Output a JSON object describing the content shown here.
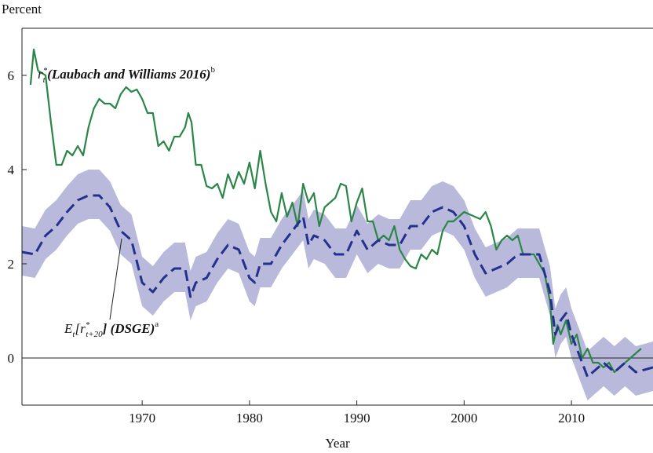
{
  "chart_data": {
    "type": "line",
    "y_axis_label": "Percent",
    "x_axis_label": "Year",
    "xlim": [
      1958.8,
      2017.6
    ],
    "xticks": [
      1970,
      1980,
      1990,
      2000,
      2010
    ],
    "ylim": [
      -1,
      7
    ],
    "yticks": [
      0,
      2,
      4,
      6
    ],
    "zero_line": true,
    "annotations": [
      {
        "parts": [
          "r",
          "t",
          "*",
          "(Laubach and Williams 2016)",
          "b"
        ]
      },
      {
        "parts": [
          "E",
          "t",
          "[r",
          "*",
          "t+20",
          "] (DSGE)",
          "a"
        ]
      }
    ],
    "band": {
      "color": "#b9b9dc",
      "x": [
        1958.8,
        1960,
        1961,
        1962,
        1963,
        1964,
        1965,
        1966,
        1967,
        1968,
        1969,
        1970,
        1971,
        1972,
        1973,
        1974,
        1974.5,
        1975,
        1976,
        1977,
        1978,
        1979,
        1980,
        1980.5,
        1981,
        1982,
        1983,
        1984,
        1985,
        1985.5,
        1986,
        1987,
        1988,
        1989,
        1990,
        1991,
        1992,
        1993,
        1994,
        1995,
        1996,
        1997,
        1998,
        1999,
        2000,
        2001,
        2002,
        2003,
        2004,
        2005,
        2006,
        2007,
        2008,
        2008.5,
        2009,
        2009.5,
        2010,
        2011,
        2011.5,
        2012,
        2013,
        2014,
        2015,
        2016,
        2017.6
      ],
      "lower": [
        1.75,
        1.7,
        2.1,
        2.3,
        2.6,
        2.85,
        2.95,
        2.95,
        2.7,
        2.2,
        2.0,
        1.1,
        0.9,
        1.2,
        1.4,
        1.4,
        0.8,
        1.1,
        1.2,
        1.6,
        1.9,
        1.8,
        1.2,
        1.1,
        1.5,
        1.5,
        1.9,
        2.2,
        2.5,
        1.9,
        2.1,
        2.0,
        1.7,
        1.7,
        2.2,
        1.8,
        2.0,
        1.9,
        1.9,
        2.3,
        2.3,
        2.6,
        2.7,
        2.6,
        2.3,
        1.7,
        1.3,
        1.4,
        1.5,
        1.7,
        1.7,
        1.7,
        0.9,
        0.0,
        0.3,
        0.45,
        0.0,
        -0.6,
        -0.9,
        -0.8,
        -0.6,
        -0.8,
        -0.6,
        -0.8,
        -0.7
      ],
      "upper": [
        2.8,
        2.75,
        3.15,
        3.35,
        3.65,
        3.9,
        4.0,
        4.0,
        3.75,
        3.25,
        3.05,
        2.15,
        1.95,
        2.25,
        2.45,
        2.45,
        1.85,
        2.15,
        2.25,
        2.65,
        2.95,
        2.85,
        2.25,
        2.15,
        2.55,
        2.55,
        2.95,
        3.25,
        3.55,
        2.95,
        3.15,
        3.05,
        2.75,
        2.75,
        3.25,
        2.85,
        3.05,
        2.95,
        2.95,
        3.35,
        3.35,
        3.65,
        3.75,
        3.65,
        3.35,
        2.75,
        2.35,
        2.45,
        2.55,
        2.75,
        2.75,
        2.75,
        1.95,
        1.05,
        1.35,
        1.5,
        1.05,
        0.45,
        0.15,
        0.25,
        0.45,
        0.25,
        0.45,
        0.25,
        0.35
      ]
    },
    "series": [
      {
        "color": "#2a8646",
        "dash": false,
        "x": [
          1959.6,
          1959.9,
          1960.3,
          1961,
          1961.5,
          1962,
          1962.5,
          1963,
          1963.5,
          1964,
          1964.5,
          1965,
          1965.5,
          1966,
          1966.5,
          1967,
          1967.5,
          1968,
          1968.5,
          1969,
          1969.5,
          1970,
          1970.5,
          1971,
          1971.5,
          1972,
          1972.5,
          1973,
          1973.5,
          1974,
          1974.3,
          1974.6,
          1975,
          1975.5,
          1976,
          1976.5,
          1977,
          1977.5,
          1978,
          1978.5,
          1979,
          1979.5,
          1980,
          1980.5,
          1981,
          1981.5,
          1982,
          1982.5,
          1983,
          1983.5,
          1984,
          1984.5,
          1985,
          1985.5,
          1986,
          1986.5,
          1987,
          1987.5,
          1988,
          1988.5,
          1989,
          1989.5,
          1990,
          1990.5,
          1991,
          1991.5,
          1992,
          1992.5,
          1993,
          1993.5,
          1994,
          1994.5,
          1995,
          1995.5,
          1996,
          1996.5,
          1997,
          1997.5,
          1998,
          1998.5,
          1999,
          1999.5,
          2000,
          2000.5,
          2001,
          2001.5,
          2002,
          2002.5,
          2003,
          2003.5,
          2004,
          2004.5,
          2005,
          2005.5,
          2006,
          2006.5,
          2007,
          2007.5,
          2008,
          2008.3,
          2008.7,
          2009,
          2009.5,
          2010,
          2010.5,
          2011,
          2011.5,
          2012,
          2012.5,
          2013,
          2013.5,
          2014,
          2014.5,
          2015,
          2015.5,
          2016,
          2016.5
        ],
        "values": [
          5.8,
          6.55,
          6.1,
          6.0,
          5.0,
          4.1,
          4.1,
          4.4,
          4.3,
          4.5,
          4.3,
          4.9,
          5.3,
          5.5,
          5.4,
          5.4,
          5.3,
          5.6,
          5.75,
          5.65,
          5.7,
          5.5,
          5.2,
          5.2,
          4.5,
          4.6,
          4.4,
          4.7,
          4.7,
          4.9,
          5.2,
          5.0,
          4.1,
          4.1,
          3.65,
          3.6,
          3.7,
          3.4,
          3.9,
          3.6,
          3.95,
          3.7,
          4.15,
          3.6,
          4.4,
          3.7,
          3.1,
          2.9,
          3.5,
          3.0,
          3.3,
          2.8,
          3.7,
          3.3,
          3.5,
          2.8,
          3.2,
          3.3,
          3.4,
          3.7,
          3.65,
          2.9,
          3.3,
          3.6,
          2.9,
          2.9,
          2.5,
          2.6,
          2.5,
          2.8,
          2.3,
          2.1,
          1.95,
          1.9,
          2.2,
          2.1,
          2.3,
          2.2,
          2.7,
          2.9,
          2.9,
          3.0,
          3.1,
          3.05,
          3.0,
          2.95,
          3.1,
          2.8,
          2.3,
          2.5,
          2.6,
          2.5,
          2.6,
          2.2,
          2.2,
          2.2,
          2.0,
          1.8,
          1.2,
          0.3,
          0.7,
          0.5,
          0.8,
          0.3,
          0.5,
          0.0,
          0.2,
          -0.1,
          -0.1,
          -0.2,
          -0.1,
          -0.3,
          -0.2,
          -0.1,
          0.0,
          0.1,
          0.2
        ]
      },
      {
        "color": "#24318c",
        "dash": true,
        "x": [
          1958.8,
          1960,
          1961,
          1962,
          1963,
          1964,
          1965,
          1966,
          1967,
          1968,
          1969,
          1970,
          1971,
          1972,
          1973,
          1974,
          1974.5,
          1975,
          1976,
          1977,
          1978,
          1979,
          1980,
          1980.5,
          1981,
          1982,
          1983,
          1984,
          1985,
          1985.5,
          1986,
          1987,
          1988,
          1989,
          1990,
          1991,
          1992,
          1993,
          1994,
          1995,
          1996,
          1997,
          1998,
          1999,
          2000,
          2001,
          2002,
          2003,
          2004,
          2005,
          2006,
          2007,
          2008,
          2008.5,
          2009,
          2009.5,
          2010,
          2011,
          2011.5,
          2012,
          2013,
          2014,
          2015,
          2016,
          2017.6
        ],
        "values": [
          2.25,
          2.2,
          2.6,
          2.8,
          3.1,
          3.35,
          3.45,
          3.45,
          3.2,
          2.7,
          2.5,
          1.6,
          1.4,
          1.7,
          1.9,
          1.9,
          1.3,
          1.6,
          1.7,
          2.1,
          2.4,
          2.3,
          1.7,
          1.6,
          2.0,
          2.0,
          2.4,
          2.7,
          3.0,
          2.4,
          2.6,
          2.5,
          2.2,
          2.2,
          2.7,
          2.3,
          2.5,
          2.4,
          2.4,
          2.8,
          2.8,
          3.1,
          3.2,
          3.1,
          2.8,
          2.2,
          1.8,
          1.9,
          2.0,
          2.2,
          2.2,
          2.2,
          1.4,
          0.5,
          0.8,
          0.95,
          0.5,
          -0.1,
          -0.4,
          -0.3,
          -0.1,
          -0.3,
          -0.1,
          -0.3,
          -0.2
        ]
      }
    ]
  }
}
